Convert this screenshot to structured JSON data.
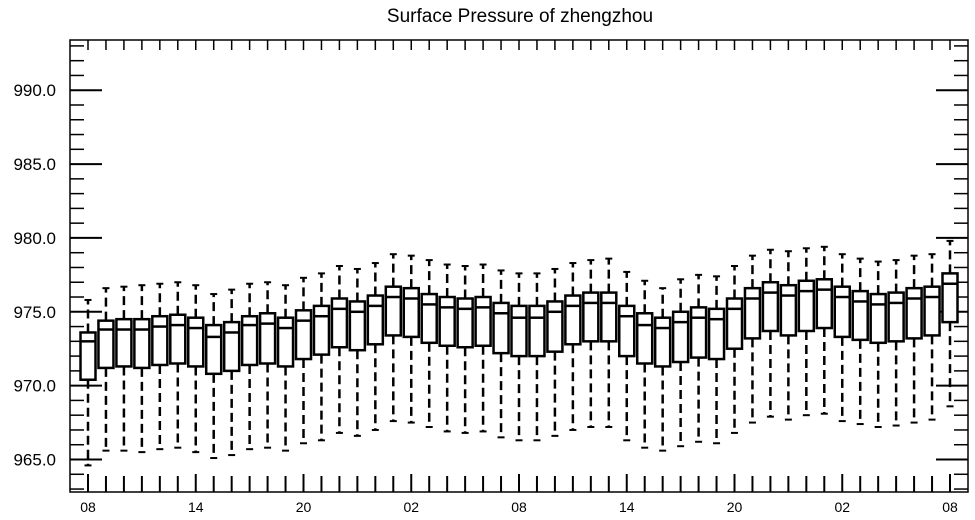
{
  "chart_data": {
    "type": "boxplot",
    "title": "Surface Pressure of zhengzhou",
    "xlabel": "",
    "ylabel": "",
    "ylim": [
      962.8,
      993.4
    ],
    "yticks": [
      965.0,
      970.0,
      975.0,
      980.0,
      985.0,
      990.0
    ],
    "ytick_labels": [
      "965.0",
      "970.0",
      "975.0",
      "980.0",
      "985.0",
      "990.0"
    ],
    "xticks": [
      {
        "index": 0,
        "label": "08"
      },
      {
        "index": 6,
        "label": "14"
      },
      {
        "index": 12,
        "label": "20"
      },
      {
        "index": 18,
        "label": "02"
      },
      {
        "index": 24,
        "label": "08"
      },
      {
        "index": 30,
        "label": "14"
      },
      {
        "index": 36,
        "label": "20"
      },
      {
        "index": 42,
        "label": "02"
      },
      {
        "index": 48,
        "label": "08"
      }
    ],
    "grid": false,
    "boxes": [
      {
        "x": 0,
        "min": 964.6,
        "q1": 970.4,
        "median": 973.0,
        "q3": 973.6,
        "max": 975.8
      },
      {
        "x": 1,
        "min": 965.6,
        "q1": 971.2,
        "median": 973.8,
        "q3": 974.4,
        "max": 976.6
      },
      {
        "x": 2,
        "min": 965.6,
        "q1": 971.3,
        "median": 973.8,
        "q3": 974.5,
        "max": 976.7
      },
      {
        "x": 3,
        "min": 965.5,
        "q1": 971.2,
        "median": 973.8,
        "q3": 974.5,
        "max": 976.8
      },
      {
        "x": 4,
        "min": 965.7,
        "q1": 971.4,
        "median": 974.0,
        "q3": 974.7,
        "max": 976.9
      },
      {
        "x": 5,
        "min": 965.8,
        "q1": 971.5,
        "median": 974.1,
        "q3": 974.8,
        "max": 977.0
      },
      {
        "x": 6,
        "min": 965.5,
        "q1": 971.3,
        "median": 973.9,
        "q3": 974.6,
        "max": 976.8
      },
      {
        "x": 7,
        "min": 965.1,
        "q1": 970.8,
        "median": 973.3,
        "q3": 974.1,
        "max": 976.2
      },
      {
        "x": 8,
        "min": 965.3,
        "q1": 971.0,
        "median": 973.6,
        "q3": 974.3,
        "max": 976.5
      },
      {
        "x": 9,
        "min": 965.7,
        "q1": 971.4,
        "median": 974.1,
        "q3": 974.7,
        "max": 976.9
      },
      {
        "x": 10,
        "min": 965.8,
        "q1": 971.5,
        "median": 974.2,
        "q3": 974.9,
        "max": 977.0
      },
      {
        "x": 11,
        "min": 965.6,
        "q1": 971.3,
        "median": 973.9,
        "q3": 974.6,
        "max": 976.8
      },
      {
        "x": 12,
        "min": 966.1,
        "q1": 971.8,
        "median": 974.4,
        "q3": 975.1,
        "max": 977.3
      },
      {
        "x": 13,
        "min": 966.3,
        "q1": 972.1,
        "median": 974.7,
        "q3": 975.4,
        "max": 977.6
      },
      {
        "x": 14,
        "min": 966.8,
        "q1": 972.6,
        "median": 975.2,
        "q3": 975.9,
        "max": 978.1
      },
      {
        "x": 15,
        "min": 966.6,
        "q1": 972.4,
        "median": 975.0,
        "q3": 975.7,
        "max": 977.9
      },
      {
        "x": 16,
        "min": 967.0,
        "q1": 972.8,
        "median": 975.4,
        "q3": 976.1,
        "max": 978.3
      },
      {
        "x": 17,
        "min": 967.6,
        "q1": 973.4,
        "median": 976.0,
        "q3": 976.7,
        "max": 978.9
      },
      {
        "x": 18,
        "min": 967.5,
        "q1": 973.3,
        "median": 975.9,
        "q3": 976.6,
        "max": 978.8
      },
      {
        "x": 19,
        "min": 967.2,
        "q1": 972.9,
        "median": 975.5,
        "q3": 976.2,
        "max": 978.5
      },
      {
        "x": 20,
        "min": 966.9,
        "q1": 972.7,
        "median": 975.3,
        "q3": 976.0,
        "max": 978.2
      },
      {
        "x": 21,
        "min": 966.8,
        "q1": 972.6,
        "median": 975.2,
        "q3": 975.9,
        "max": 978.1
      },
      {
        "x": 22,
        "min": 966.9,
        "q1": 972.7,
        "median": 975.3,
        "q3": 976.0,
        "max": 978.2
      },
      {
        "x": 23,
        "min": 966.5,
        "q1": 972.2,
        "median": 974.9,
        "q3": 975.6,
        "max": 977.8
      },
      {
        "x": 24,
        "min": 966.3,
        "q1": 972.0,
        "median": 974.6,
        "q3": 975.4,
        "max": 977.6
      },
      {
        "x": 25,
        "min": 966.3,
        "q1": 972.0,
        "median": 974.6,
        "q3": 975.4,
        "max": 977.6
      },
      {
        "x": 26,
        "min": 966.6,
        "q1": 972.3,
        "median": 975.0,
        "q3": 975.7,
        "max": 977.9
      },
      {
        "x": 27,
        "min": 967.0,
        "q1": 972.8,
        "median": 975.4,
        "q3": 976.1,
        "max": 978.3
      },
      {
        "x": 28,
        "min": 967.2,
        "q1": 973.0,
        "median": 975.6,
        "q3": 976.3,
        "max": 978.5
      },
      {
        "x": 29,
        "min": 967.2,
        "q1": 973.0,
        "median": 975.6,
        "q3": 976.3,
        "max": 978.6
      },
      {
        "x": 30,
        "min": 966.3,
        "q1": 972.0,
        "median": 974.7,
        "q3": 975.4,
        "max": 977.7
      },
      {
        "x": 31,
        "min": 965.8,
        "q1": 971.5,
        "median": 974.1,
        "q3": 974.9,
        "max": 977.1
      },
      {
        "x": 32,
        "min": 965.6,
        "q1": 971.3,
        "median": 973.9,
        "q3": 974.6,
        "max": 976.6
      },
      {
        "x": 33,
        "min": 965.9,
        "q1": 971.6,
        "median": 974.3,
        "q3": 975.0,
        "max": 977.2
      },
      {
        "x": 34,
        "min": 966.2,
        "q1": 971.9,
        "median": 974.6,
        "q3": 975.3,
        "max": 977.5
      },
      {
        "x": 35,
        "min": 966.1,
        "q1": 971.8,
        "median": 974.5,
        "q3": 975.2,
        "max": 977.4
      },
      {
        "x": 36,
        "min": 966.8,
        "q1": 972.5,
        "median": 975.2,
        "q3": 975.9,
        "max": 978.1
      },
      {
        "x": 37,
        "min": 967.5,
        "q1": 973.2,
        "median": 975.9,
        "q3": 976.6,
        "max": 978.8
      },
      {
        "x": 38,
        "min": 967.9,
        "q1": 973.7,
        "median": 976.3,
        "q3": 977.0,
        "max": 979.2
      },
      {
        "x": 39,
        "min": 967.7,
        "q1": 973.4,
        "median": 976.1,
        "q3": 976.8,
        "max": 979.1
      },
      {
        "x": 40,
        "min": 968.0,
        "q1": 973.7,
        "median": 976.4,
        "q3": 977.1,
        "max": 979.3
      },
      {
        "x": 41,
        "min": 968.1,
        "q1": 973.9,
        "median": 976.5,
        "q3": 977.2,
        "max": 979.4
      },
      {
        "x": 42,
        "min": 967.6,
        "q1": 973.3,
        "median": 976.0,
        "q3": 976.7,
        "max": 978.9
      },
      {
        "x": 43,
        "min": 967.4,
        "q1": 973.1,
        "median": 975.7,
        "q3": 976.4,
        "max": 978.6
      },
      {
        "x": 44,
        "min": 967.2,
        "q1": 972.9,
        "median": 975.5,
        "q3": 976.2,
        "max": 978.4
      },
      {
        "x": 45,
        "min": 967.3,
        "q1": 973.0,
        "median": 975.6,
        "q3": 976.3,
        "max": 978.5
      },
      {
        "x": 46,
        "min": 967.5,
        "q1": 973.2,
        "median": 975.9,
        "q3": 976.6,
        "max": 978.8
      },
      {
        "x": 47,
        "min": 967.7,
        "q1": 973.4,
        "median": 976.0,
        "q3": 976.7,
        "max": 978.9
      },
      {
        "x": 48,
        "min": 968.6,
        "q1": 974.3,
        "median": 976.9,
        "q3": 977.6,
        "max": 979.8
      }
    ]
  }
}
